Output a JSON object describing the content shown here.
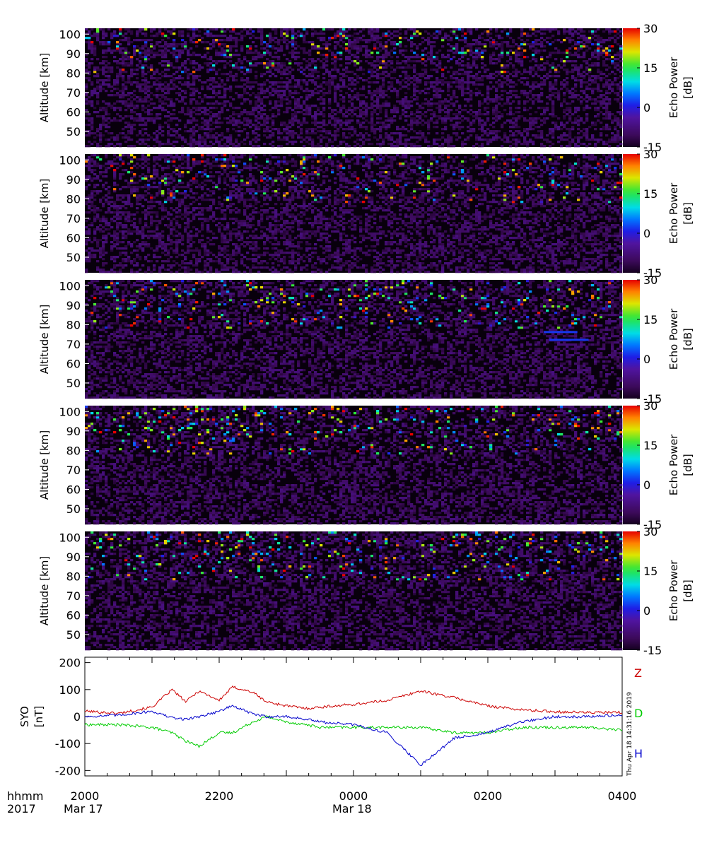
{
  "timestamp": "Thu Apr 18 14:31:16 2019",
  "time_axis": {
    "row_label_format": "hhmm",
    "row_label_year": "2017",
    "ticks": [
      "2000",
      "2200",
      "0000",
      "0200",
      "0400"
    ],
    "date_labels": [
      "Mar 17",
      "Mar 18"
    ]
  },
  "chart_data": [
    {
      "type": "heatmap",
      "panel": 1,
      "ylabel": "Altitude [km]",
      "yticks": [
        50,
        60,
        70,
        80,
        90,
        100
      ],
      "ylim": [
        42,
        103
      ],
      "xlim": [
        "2017-03-17 20:00",
        "2017-03-18 04:00"
      ],
      "colorbar": {
        "label": "Echo Power",
        "unit": "[dB]",
        "ticks": [
          30,
          15,
          0,
          -15
        ],
        "range": [
          -15,
          30
        ]
      },
      "seed": 11,
      "activity": 0.9,
      "hot_altitude_range": [
        80,
        103
      ]
    },
    {
      "type": "heatmap",
      "panel": 2,
      "ylabel": "Altitude [km]",
      "yticks": [
        50,
        60,
        70,
        80,
        90,
        100
      ],
      "ylim": [
        42,
        103
      ],
      "xlim": [
        "2017-03-17 20:00",
        "2017-03-18 04:00"
      ],
      "colorbar": {
        "label": "Echo Power",
        "unit": "[dB]",
        "ticks": [
          30,
          15,
          0,
          -15
        ],
        "range": [
          -15,
          30
        ]
      },
      "seed": 23,
      "activity": 1.0,
      "hot_altitude_range": [
        78,
        103
      ]
    },
    {
      "type": "heatmap",
      "panel": 3,
      "ylabel": "Altitude [km]",
      "yticks": [
        50,
        60,
        70,
        80,
        90,
        100
      ],
      "ylim": [
        42,
        103
      ],
      "xlim": [
        "2017-03-17 20:00",
        "2017-03-18 04:00"
      ],
      "colorbar": {
        "label": "Echo Power",
        "unit": "[dB]",
        "ticks": [
          30,
          15,
          0,
          -15
        ],
        "range": [
          -15,
          30
        ]
      },
      "seed": 37,
      "activity": 1.1,
      "hot_altitude_range": [
        78,
        103
      ],
      "layers": [
        {
          "start": "2017-03-18 02:50",
          "end": "2017-03-18 03:20",
          "altitude": 76,
          "dB": 2
        },
        {
          "start": "2017-03-18 02:55",
          "end": "2017-03-18 03:30",
          "altitude": 72,
          "dB": 2
        }
      ]
    },
    {
      "type": "heatmap",
      "panel": 4,
      "ylabel": "Altitude [km]",
      "yticks": [
        50,
        60,
        70,
        80,
        90,
        100
      ],
      "ylim": [
        42,
        103
      ],
      "xlim": [
        "2017-03-17 20:00",
        "2017-03-18 04:00"
      ],
      "colorbar": {
        "label": "Echo Power",
        "unit": "[dB]",
        "ticks": [
          30,
          15,
          0,
          -15
        ],
        "range": [
          -15,
          30
        ]
      },
      "seed": 53,
      "activity": 1.4,
      "hot_altitude_range": [
        78,
        103
      ]
    },
    {
      "type": "heatmap",
      "panel": 5,
      "ylabel": "Altitude [km]",
      "yticks": [
        50,
        60,
        70,
        80,
        90,
        100
      ],
      "ylim": [
        42,
        103
      ],
      "xlim": [
        "2017-03-17 20:00",
        "2017-03-18 04:00"
      ],
      "colorbar": {
        "label": "Echo Power",
        "unit": "[dB]",
        "ticks": [
          30,
          15,
          0,
          -15
        ],
        "range": [
          -15,
          30
        ]
      },
      "seed": 71,
      "activity": 1.2,
      "hot_altitude_range": [
        78,
        103
      ]
    },
    {
      "type": "line",
      "panel": 6,
      "ylabel": "SYO",
      "yunit": "[nT]",
      "yticks": [
        200,
        100,
        0,
        -100,
        -200
      ],
      "ylim": [
        -220,
        220
      ],
      "xlim": [
        "2017-03-17 20:00",
        "2017-03-18 04:00"
      ],
      "x_hours_since_2000": [
        0,
        0.5,
        1.0,
        1.3,
        1.5,
        1.7,
        2.0,
        2.2,
        2.5,
        2.7,
        3.0,
        3.3,
        3.5,
        4.0,
        4.5,
        5.0,
        5.5,
        6.0,
        6.5,
        7.0,
        7.5,
        8.0
      ],
      "series": [
        {
          "name": "Z",
          "color": "#cc0000",
          "values": [
            20,
            12,
            35,
            100,
            55,
            95,
            60,
            110,
            90,
            55,
            40,
            30,
            35,
            45,
            60,
            95,
            70,
            40,
            25,
            18,
            15,
            15
          ]
        },
        {
          "name": "D",
          "color": "#00cc00",
          "values": [
            -30,
            -30,
            -40,
            -60,
            -90,
            -110,
            -60,
            -60,
            -20,
            0,
            -20,
            -30,
            -40,
            -40,
            -40,
            -40,
            -60,
            -60,
            -40,
            -40,
            -40,
            -50
          ]
        },
        {
          "name": "H",
          "color": "#0000cc",
          "values": [
            0,
            5,
            20,
            -5,
            -10,
            0,
            20,
            40,
            10,
            0,
            0,
            -10,
            -20,
            -30,
            -60,
            -180,
            -80,
            -60,
            -20,
            0,
            0,
            5
          ]
        }
      ]
    }
  ]
}
